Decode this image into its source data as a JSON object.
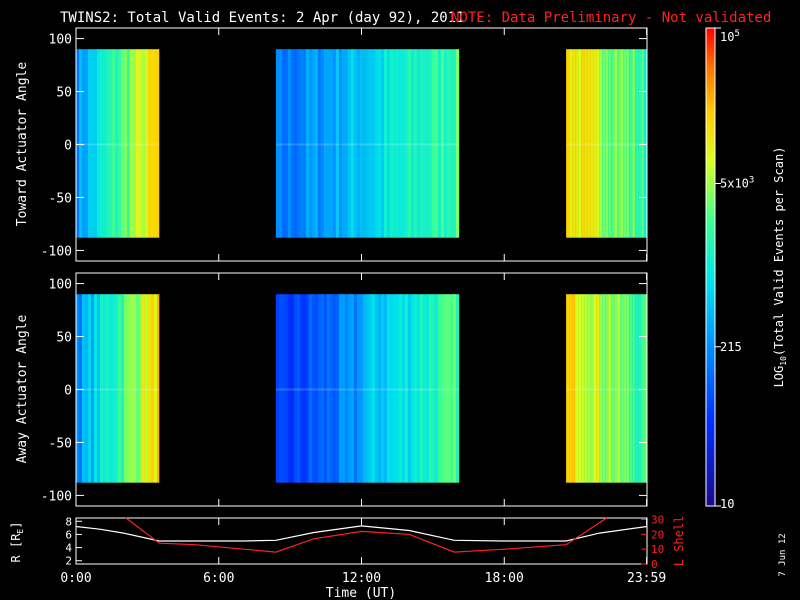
{
  "chart_data": {
    "type": "heatmap",
    "title": "TWINS2: Total Valid Events:  2 Apr (day  92), 2011",
    "note": "NOTE: Data Preliminary - Not validated",
    "date_stamp": "7 Jun 12",
    "colorbar": {
      "label_pre": "LOG",
      "label_sub": "10",
      "label_post": "(Total Valid  Events per Scan)",
      "ticks": [
        {
          "value": 10,
          "label": "10",
          "sup": ""
        },
        {
          "value": 215,
          "label": "215",
          "sup": ""
        },
        {
          "value": 5000,
          "label": "5x10",
          "sup": "3"
        },
        {
          "value": 100000,
          "label": "10",
          "sup": "5"
        }
      ],
      "range": [
        10,
        100000
      ]
    },
    "x_axis": {
      "label": "Time (UT)",
      "range_hours": [
        0,
        24
      ],
      "ticks": [
        {
          "hour": 0,
          "label": "0:00"
        },
        {
          "hour": 6,
          "label": "6:00"
        },
        {
          "hour": 12,
          "label": "12:00"
        },
        {
          "hour": 18,
          "label": "18:00"
        },
        {
          "hour": 23.983,
          "label": "23:59"
        }
      ]
    },
    "panels": [
      {
        "name": "toward",
        "ylabel": "Toward Actuator Angle",
        "ylim": [
          -110,
          110
        ],
        "angle_range": [
          -88,
          90
        ],
        "yticks": [
          100,
          50,
          0,
          -50,
          -100
        ],
        "coverage": [
          {
            "start": 0.0,
            "end": 3.5,
            "start_level": 0.35,
            "end_level": 0.82
          },
          {
            "start": 8.4,
            "end": 16.1,
            "start_level": 0.28,
            "end_level": 0.6
          },
          {
            "start": 20.6,
            "end": 24.0,
            "start_level": 0.8,
            "end_level": 0.55
          }
        ]
      },
      {
        "name": "away",
        "ylabel": "Away Actuator Angle",
        "ylim": [
          -110,
          110
        ],
        "angle_range": [
          -88,
          90
        ],
        "yticks": [
          100,
          50,
          0,
          -50,
          -100
        ],
        "coverage": [
          {
            "start": 0.0,
            "end": 3.5,
            "start_level": 0.33,
            "end_level": 0.82
          },
          {
            "start": 8.4,
            "end": 16.1,
            "start_level": 0.22,
            "end_level": 0.6
          },
          {
            "start": 20.6,
            "end": 24.0,
            "start_level": 0.8,
            "end_level": 0.55
          }
        ]
      }
    ],
    "ephemeris": {
      "left_label": "R [R",
      "left_sub": "E",
      "left_close": "]",
      "left_ticks": [
        2,
        4,
        6,
        8
      ],
      "left_range": [
        1.5,
        8.5
      ],
      "right_label": "L Shell",
      "right_ticks": [
        0,
        10,
        20,
        30
      ],
      "right_range": [
        0,
        31
      ],
      "series": [
        {
          "name": "R",
          "color": "#ffffff",
          "x": [
            0,
            1,
            2,
            3.5,
            5,
            7,
            8.4,
            10,
            12,
            14,
            15.9,
            18,
            20.6,
            22,
            24
          ],
          "y": [
            7.2,
            6.8,
            6.2,
            5.0,
            5.0,
            5.0,
            5.1,
            6.3,
            7.3,
            6.6,
            5.1,
            5.0,
            5.0,
            6.2,
            7.2
          ]
        },
        {
          "name": "L Shell",
          "color": "#ff2020",
          "x": [
            2.1,
            3.5,
            5,
            8.4,
            10,
            12,
            14,
            15.9,
            18,
            20.6,
            22.3
          ],
          "y": [
            31,
            14,
            13,
            8,
            17,
            22,
            20,
            8,
            10,
            13,
            31
          ]
        }
      ]
    }
  }
}
